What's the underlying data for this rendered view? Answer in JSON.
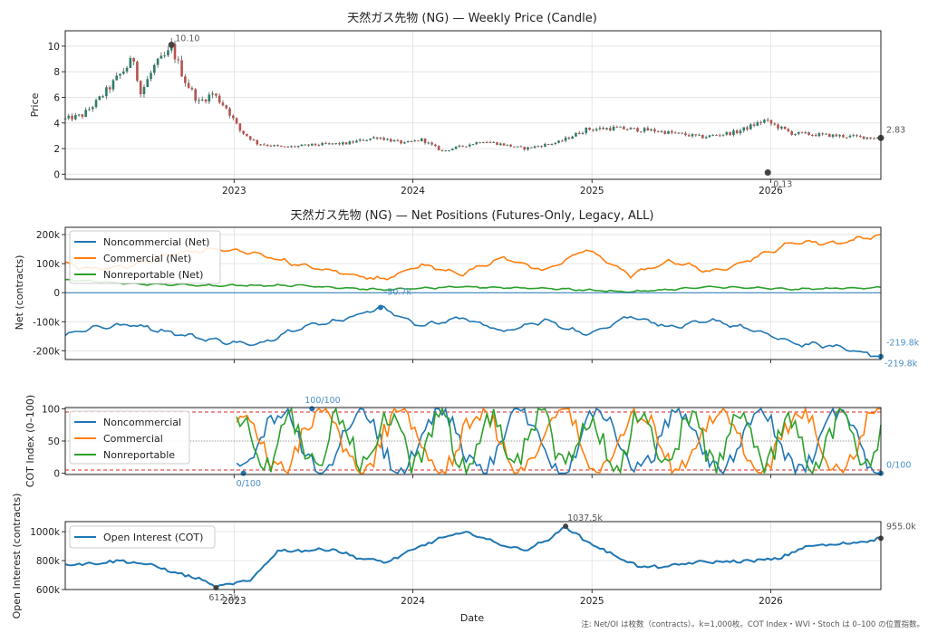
{
  "figure": {
    "xlabel": "Date",
    "note": "注: Net/OI は枚数（contracts）。k=1,000枚。COT Index・WVI・Stoch は 0–100 の位置指数。",
    "x_range": [
      "2022-01-21",
      "2026-08-14"
    ],
    "x_ticks": [
      "2023",
      "2024",
      "2025",
      "2026"
    ],
    "x_tick_dates": [
      "2023-01-01",
      "2024-01-01",
      "2025-01-01",
      "2026-01-01"
    ]
  },
  "chart_data": [
    {
      "type": "candlestick",
      "title": "天然ガス先物 (NG) — Weekly Price (Candle)",
      "ylabel": "Price",
      "ylim": [
        -0.4,
        11.2
      ],
      "y_ticks": [
        "0",
        "2",
        "4",
        "6",
        "8",
        "10"
      ],
      "frequency": "weekly",
      "close_anchors": [
        [
          "2022-01-21",
          4.3
        ],
        [
          "2022-02-25",
          4.6
        ],
        [
          "2022-03-25",
          5.6
        ],
        [
          "2022-04-22",
          6.8
        ],
        [
          "2022-05-20",
          8.1
        ],
        [
          "2022-06-10",
          9.0
        ],
        [
          "2022-06-24",
          6.3
        ],
        [
          "2022-07-22",
          8.4
        ],
        [
          "2022-08-19",
          9.4
        ],
        [
          "2022-08-26",
          9.9
        ],
        [
          "2022-09-23",
          7.3
        ],
        [
          "2022-10-21",
          5.6
        ],
        [
          "2022-11-18",
          6.3
        ],
        [
          "2022-12-16",
          5.2
        ],
        [
          "2023-01-13",
          3.4
        ],
        [
          "2023-02-17",
          2.4
        ],
        [
          "2023-04-14",
          2.1
        ],
        [
          "2023-06-16",
          2.3
        ],
        [
          "2023-08-18",
          2.4
        ],
        [
          "2023-10-20",
          2.9
        ],
        [
          "2023-12-15",
          2.4
        ],
        [
          "2024-01-19",
          2.7
        ],
        [
          "2024-03-01",
          1.8
        ],
        [
          "2024-05-24",
          2.6
        ],
        [
          "2024-08-16",
          2.0
        ],
        [
          "2024-10-25",
          2.5
        ],
        [
          "2024-12-20",
          3.5
        ],
        [
          "2025-02-14",
          3.6
        ],
        [
          "2025-05-09",
          3.4
        ],
        [
          "2025-08-15",
          2.9
        ],
        [
          "2025-10-24",
          3.3
        ],
        [
          "2025-12-19",
          4.2
        ],
        [
          "2026-02-13",
          3.2
        ],
        [
          "2026-05-15",
          3.0
        ],
        [
          "2026-08-14",
          2.83
        ]
      ],
      "annotations": [
        {
          "label": "10.10",
          "date": "2022-08-26",
          "value": 10.1
        },
        {
          "label": "0.13",
          "date": "2025-12-26",
          "value": 0.13
        },
        {
          "label": "2.83",
          "date": "2026-08-14",
          "value": 2.83
        }
      ]
    },
    {
      "type": "line",
      "title": "天然ガス先物 (NG) — Net Positions (Futures-Only, Legacy, ALL)",
      "ylabel": "Net (contracts)",
      "ylim": [
        -230000,
        225000
      ],
      "y_ticks": [
        "-200k",
        "-100k",
        "0",
        "100k",
        "200k"
      ],
      "y_tick_values": [
        -200000,
        -100000,
        0,
        100000,
        200000
      ],
      "legend": "top-left",
      "series": [
        {
          "name": "Noncommercial (Net)",
          "color": "#1f77b4",
          "points": [
            [
              "2022-01-21",
              -145000
            ],
            [
              "2022-03-18",
              -120000
            ],
            [
              "2022-06-10",
              -110000
            ],
            [
              "2022-09-02",
              -140000
            ],
            [
              "2022-11-25",
              -165000
            ],
            [
              "2023-02-17",
              -180000
            ],
            [
              "2023-05-12",
              -120000
            ],
            [
              "2023-08-04",
              -95000
            ],
            [
              "2023-10-27",
              -50700
            ],
            [
              "2024-01-19",
              -115000
            ],
            [
              "2024-04-12",
              -85000
            ],
            [
              "2024-07-05",
              -135000
            ],
            [
              "2024-09-27",
              -95000
            ],
            [
              "2024-12-20",
              -145000
            ],
            [
              "2025-03-21",
              -80000
            ],
            [
              "2025-06-13",
              -120000
            ],
            [
              "2025-09-05",
              -95000
            ],
            [
              "2025-11-28",
              -130000
            ],
            [
              "2026-02-20",
              -175000
            ],
            [
              "2026-05-15",
              -185000
            ],
            [
              "2026-08-14",
              -219800
            ]
          ]
        },
        {
          "name": "Commercial (Net)",
          "color": "#ff7f0e",
          "points": [
            [
              "2022-01-21",
              100000
            ],
            [
              "2022-03-18",
              80000
            ],
            [
              "2022-06-10",
              95000
            ],
            [
              "2022-09-02",
              135000
            ],
            [
              "2022-11-25",
              150000
            ],
            [
              "2023-02-17",
              135000
            ],
            [
              "2023-05-12",
              95000
            ],
            [
              "2023-08-04",
              70000
            ],
            [
              "2023-10-27",
              45000
            ],
            [
              "2024-01-19",
              95000
            ],
            [
              "2024-04-12",
              65000
            ],
            [
              "2024-07-05",
              120000
            ],
            [
              "2024-09-27",
              75000
            ],
            [
              "2024-12-20",
              150000
            ],
            [
              "2025-03-21",
              60000
            ],
            [
              "2025-06-13",
              110000
            ],
            [
              "2025-09-05",
              70000
            ],
            [
              "2025-11-28",
              120000
            ],
            [
              "2026-02-20",
              175000
            ],
            [
              "2026-05-15",
              170000
            ],
            [
              "2026-08-14",
              200000
            ]
          ]
        },
        {
          "name": "Nonreportable (Net)",
          "color": "#2ca02c",
          "points": [
            [
              "2022-01-21",
              45000
            ],
            [
              "2022-06-10",
              30000
            ],
            [
              "2022-11-25",
              25000
            ],
            [
              "2023-05-12",
              25000
            ],
            [
              "2023-10-27",
              10000
            ],
            [
              "2024-04-12",
              20000
            ],
            [
              "2024-09-27",
              15000
            ],
            [
              "2025-03-21",
              3000
            ],
            [
              "2025-09-05",
              20000
            ],
            [
              "2026-02-20",
              12000
            ],
            [
              "2026-08-14",
              18000
            ]
          ]
        }
      ],
      "zero_line": true,
      "annotations": [
        {
          "label": "-50.7k",
          "date": "2023-10-27",
          "value": -50700,
          "color": "#4a8fc7"
        },
        {
          "label": "-219.8k",
          "date": "2026-08-14",
          "value": -219800,
          "color": "#4a8fc7"
        },
        {
          "label": "-219.8k",
          "date": "2026-08-14",
          "value": -219800,
          "color": "#4a8fc7",
          "position": "below"
        }
      ]
    },
    {
      "type": "line",
      "title": "",
      "ylabel": "COT Index (0–100)",
      "ylim": [
        -2,
        102
      ],
      "y_ticks": [
        "0",
        "50",
        "100"
      ],
      "y_tick_values": [
        0,
        50,
        100
      ],
      "start_date": "2023-01-06",
      "legend": "top-left",
      "reference_lines": [
        {
          "value": 95,
          "color": "#d62728",
          "style": "dashed"
        },
        {
          "value": 50,
          "color": "#999999",
          "style": "dotted"
        },
        {
          "value": 5,
          "color": "#d62728",
          "style": "dashed"
        }
      ],
      "series": [
        {
          "name": "Noncommercial",
          "color": "#1f77b4"
        },
        {
          "name": "Commercial",
          "color": "#ff7f0e"
        },
        {
          "name": "Nonreportable",
          "color": "#2ca02c"
        }
      ],
      "annotations": [
        {
          "label": "100/100",
          "date": "2023-06-09",
          "value": 100,
          "color": "#4a8fc7",
          "position": "above"
        },
        {
          "label": "0/100",
          "date": "2023-01-20",
          "value": 0,
          "color": "#4a8fc7",
          "position": "below"
        },
        {
          "label": "0/100",
          "date": "2026-08-14",
          "value": 0,
          "color": "#4a8fc7",
          "position": "right"
        }
      ]
    },
    {
      "type": "line",
      "title": "",
      "ylabel": "Open Interest (contracts)",
      "ylim": [
        600000,
        1070000
      ],
      "y_ticks": [
        "600k",
        "800k",
        "1000k"
      ],
      "y_tick_values": [
        600000,
        800000,
        1000000
      ],
      "legend": "top-left",
      "series": [
        {
          "name": "Open Interest (COT)",
          "color": "#1f77b4",
          "points": [
            [
              "2022-01-21",
              775000
            ],
            [
              "2022-03-18",
              780000
            ],
            [
              "2022-05-13",
              800000
            ],
            [
              "2022-07-08",
              775000
            ],
            [
              "2022-09-02",
              720000
            ],
            [
              "2022-10-28",
              665000
            ],
            [
              "2022-11-25",
              612200
            ],
            [
              "2022-12-23",
              640000
            ],
            [
              "2023-02-03",
              660000
            ],
            [
              "2023-03-31",
              870000
            ],
            [
              "2023-05-26",
              870000
            ],
            [
              "2023-07-21",
              880000
            ],
            [
              "2023-09-15",
              815000
            ],
            [
              "2023-11-10",
              790000
            ],
            [
              "2024-01-05",
              880000
            ],
            [
              "2024-03-01",
              960000
            ],
            [
              "2024-04-26",
              995000
            ],
            [
              "2024-06-21",
              920000
            ],
            [
              "2024-08-16",
              870000
            ],
            [
              "2024-10-11",
              960000
            ],
            [
              "2024-11-08",
              1037500
            ],
            [
              "2024-12-20",
              935000
            ],
            [
              "2025-02-14",
              840000
            ],
            [
              "2025-04-11",
              755000
            ],
            [
              "2025-06-06",
              760000
            ],
            [
              "2025-08-01",
              790000
            ],
            [
              "2025-09-26",
              790000
            ],
            [
              "2025-11-21",
              800000
            ],
            [
              "2026-01-16",
              810000
            ],
            [
              "2026-03-13",
              900000
            ],
            [
              "2026-05-08",
              910000
            ],
            [
              "2026-07-03",
              930000
            ],
            [
              "2026-08-14",
              955000
            ]
          ]
        }
      ],
      "annotations": [
        {
          "label": "612.2k",
          "date": "2022-11-25",
          "value": 612200
        },
        {
          "label": "1037.5k",
          "date": "2024-11-08",
          "value": 1037500
        },
        {
          "label": "955.0k",
          "date": "2026-08-14",
          "value": 955000
        }
      ]
    }
  ]
}
